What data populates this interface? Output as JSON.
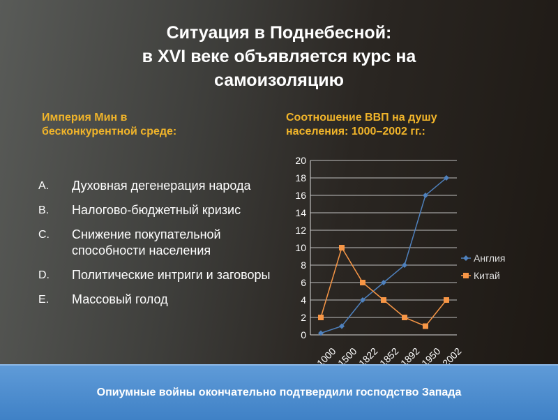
{
  "title": {
    "line1": "Ситуация в Поднебесной:",
    "line2": "в XVI веке объявляется курс на",
    "line3": "самоизоляцию"
  },
  "left_heading": "Империя Мин в бесконкурентной среде:",
  "right_heading": "Соотношение ВВП на душу населения: 1000–2002 гг.:",
  "causes": [
    {
      "marker": "A.",
      "text": "Духовная дегенерация народа"
    },
    {
      "marker": "B.",
      "text": "Налогово-бюджетный кризис"
    },
    {
      "marker": "C.",
      "text": "Снижение покупательной способности населения"
    },
    {
      "marker": "D.",
      "text": "Политические интриги и заговоры"
    },
    {
      "marker": "E.",
      "text": "Массовый голод"
    }
  ],
  "footer": "Опиумные войны окончательно подтвердили господство Запада",
  "chart_data": {
    "type": "line",
    "categories": [
      "1000",
      "1500",
      "1822",
      "1852",
      "1892",
      "1950",
      "2002"
    ],
    "series": [
      {
        "name": "Англия",
        "values": [
          0.2,
          1,
          4,
          6,
          8,
          16,
          18
        ],
        "color": "#4f81bd",
        "marker": "diamond"
      },
      {
        "name": "Китай",
        "values": [
          2,
          10,
          6,
          4,
          2,
          1,
          4
        ],
        "color": "#f79646",
        "marker": "square"
      }
    ],
    "ylim": [
      0,
      20
    ],
    "yticks": [
      "0",
      "2",
      "4",
      "6",
      "8",
      "10",
      "12",
      "14",
      "16",
      "18",
      "20"
    ],
    "grid": true,
    "legend": "right",
    "xlabel": "",
    "ylabel": ""
  },
  "colors": {
    "heading": "#f0b42a",
    "footer_bg": "#4a8bd0",
    "grid": "#bfbfbf",
    "axis_text": "#ffffff"
  }
}
